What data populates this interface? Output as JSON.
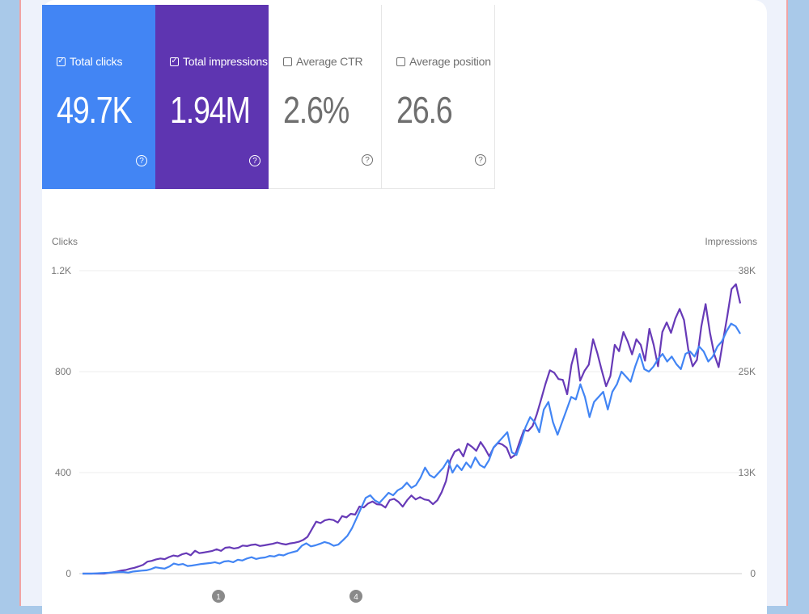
{
  "metrics": [
    {
      "label": "Total clicks",
      "value": "49.7K",
      "checked": true,
      "bg": "#4285f4",
      "fg": "#ffffff"
    },
    {
      "label": "Total impressions",
      "value": "1.94M",
      "checked": true,
      "bg": "#5e35b1",
      "fg": "#ffffff"
    },
    {
      "label": "Average CTR",
      "value": "2.6%",
      "checked": false,
      "bg": "#ffffff",
      "fg": "#6f6f6f"
    },
    {
      "label": "Average position",
      "value": "26.6",
      "checked": false,
      "bg": "#ffffff",
      "fg": "#6f6f6f"
    }
  ],
  "help_glyph": "?",
  "check_glyph": "✓",
  "chart_data": {
    "type": "line",
    "left_axis_label": "Clicks",
    "right_axis_label": "Impressions",
    "left_ticks": [
      "1.2K",
      "800",
      "400",
      "0"
    ],
    "right_ticks": [
      "38K",
      "25K",
      "13K",
      "0"
    ],
    "ylim_left": [
      0,
      1200
    ],
    "ylim_right": [
      0,
      38000
    ],
    "annotations": [
      "1",
      "4"
    ],
    "grid": true,
    "series": [
      {
        "color": "#673ab7",
        "axis": "right",
        "values": [
          0,
          0,
          0,
          0,
          0,
          0,
          80,
          160,
          260,
          390,
          460,
          620,
          730,
          900,
          1100,
          1500,
          1600,
          1780,
          1900,
          1810,
          2080,
          2270,
          2170,
          2420,
          2560,
          2300,
          2870,
          2560,
          2640,
          2750,
          2850,
          3050,
          2850,
          3240,
          3300,
          3150,
          3240,
          3520,
          3460,
          3600,
          3660,
          3470,
          3550,
          3650,
          3740,
          3900,
          3750,
          3650,
          3790,
          3870,
          3990,
          4230,
          4610,
          5560,
          6520,
          6330,
          6680,
          6810,
          6720,
          6400,
          7210,
          7050,
          7500,
          7400,
          8410,
          8300,
          8800,
          9050,
          8700,
          8650,
          8290,
          9220,
          9370,
          9000,
          8400,
          9200,
          9800,
          9300,
          9600,
          9300,
          9200,
          8700,
          9200,
          10200,
          11600,
          14200,
          15300,
          15600,
          14700,
          16300,
          15900,
          15400,
          16500,
          15700,
          14700,
          15800,
          16400,
          16200,
          15800,
          14500,
          14900,
          16500,
          18000,
          17900,
          18500,
          20000,
          21900,
          23800,
          25500,
          25200,
          24400,
          24300,
          22500,
          26200,
          28200,
          24200,
          25400,
          26200,
          29400,
          27600,
          25500,
          23500,
          24800,
          28700,
          27900,
          30300,
          29100,
          27500,
          29400,
          28700,
          26700,
          30700,
          28700,
          26000,
          30300,
          31500,
          30200,
          32000,
          33200,
          31800,
          28100,
          26000,
          26800,
          31000,
          33800,
          30200,
          27500,
          25900,
          29100,
          32300,
          35700,
          36300,
          33900
        ]
      },
      {
        "color": "#4285f4",
        "axis": "left",
        "values": [
          0,
          0,
          0,
          1,
          2,
          3,
          4,
          5,
          6,
          6,
          4,
          8,
          10,
          12,
          13,
          18,
          25,
          22,
          20,
          28,
          40,
          35,
          38,
          30,
          32,
          35,
          38,
          40,
          42,
          45,
          40,
          48,
          50,
          45,
          55,
          52,
          60,
          65,
          58,
          62,
          64,
          70,
          68,
          75,
          72,
          80,
          85,
          90,
          110,
          120,
          108,
          112,
          118,
          125,
          120,
          110,
          115,
          132,
          150,
          180,
          220,
          260,
          300,
          310,
          290,
          280,
          300,
          320,
          310,
          330,
          340,
          360,
          340,
          350,
          380,
          420,
          390,
          380,
          400,
          420,
          450,
          400,
          430,
          410,
          440,
          420,
          460,
          430,
          420,
          450,
          500,
          520,
          540,
          560,
          480,
          470,
          520,
          580,
          620,
          600,
          560,
          650,
          680,
          600,
          550,
          600,
          650,
          700,
          690,
          750,
          700,
          620,
          680,
          700,
          720,
          650,
          720,
          750,
          800,
          780,
          760,
          820,
          870,
          810,
          800,
          820,
          850,
          870,
          840,
          860,
          830,
          810,
          870,
          880,
          860,
          900,
          880,
          840,
          860,
          900,
          920,
          960,
          990,
          980,
          950
        ]
      }
    ]
  }
}
